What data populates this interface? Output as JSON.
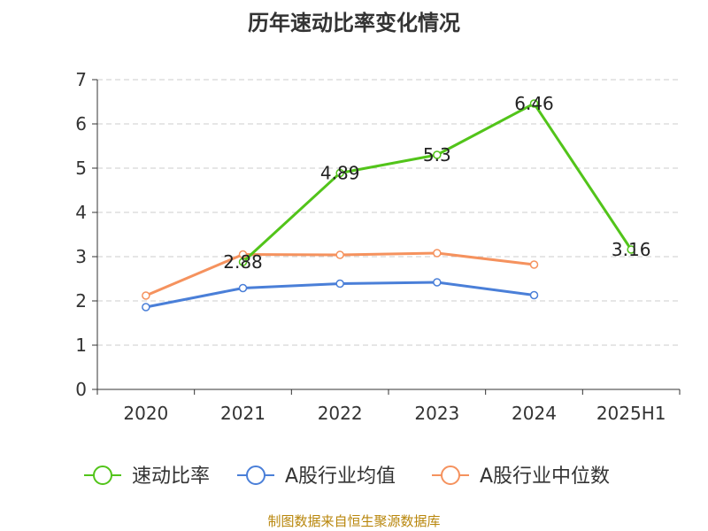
{
  "title": "历年速动比率变化情况",
  "source_note": "制图数据来自恒生聚源数据库",
  "chart_data": {
    "type": "line",
    "title": "历年速动比率变化情况",
    "categories": [
      "2020",
      "2021",
      "2022",
      "2023",
      "2024",
      "2025H1"
    ],
    "ylim": [
      0,
      7
    ],
    "yticks": [
      "0",
      "1",
      "2",
      "3",
      "4",
      "5",
      "6",
      "7"
    ],
    "grid": true,
    "legend_position": "bottom",
    "series": [
      {
        "name": "速动比率",
        "color": "#52c41a",
        "values": [
          null,
          2.88,
          4.89,
          5.3,
          6.46,
          3.16
        ],
        "labels": [
          "",
          "2.88",
          "4.89",
          "5.3",
          "6.46",
          "3.16"
        ]
      },
      {
        "name": "A股行业均值",
        "color": "#4a7fd8",
        "values": [
          1.86,
          2.29,
          2.39,
          2.42,
          2.13,
          null
        ],
        "labels": []
      },
      {
        "name": "A股行业中位数",
        "color": "#f5925e",
        "values": [
          2.12,
          3.05,
          3.04,
          3.08,
          2.82,
          null
        ],
        "labels": []
      }
    ]
  }
}
